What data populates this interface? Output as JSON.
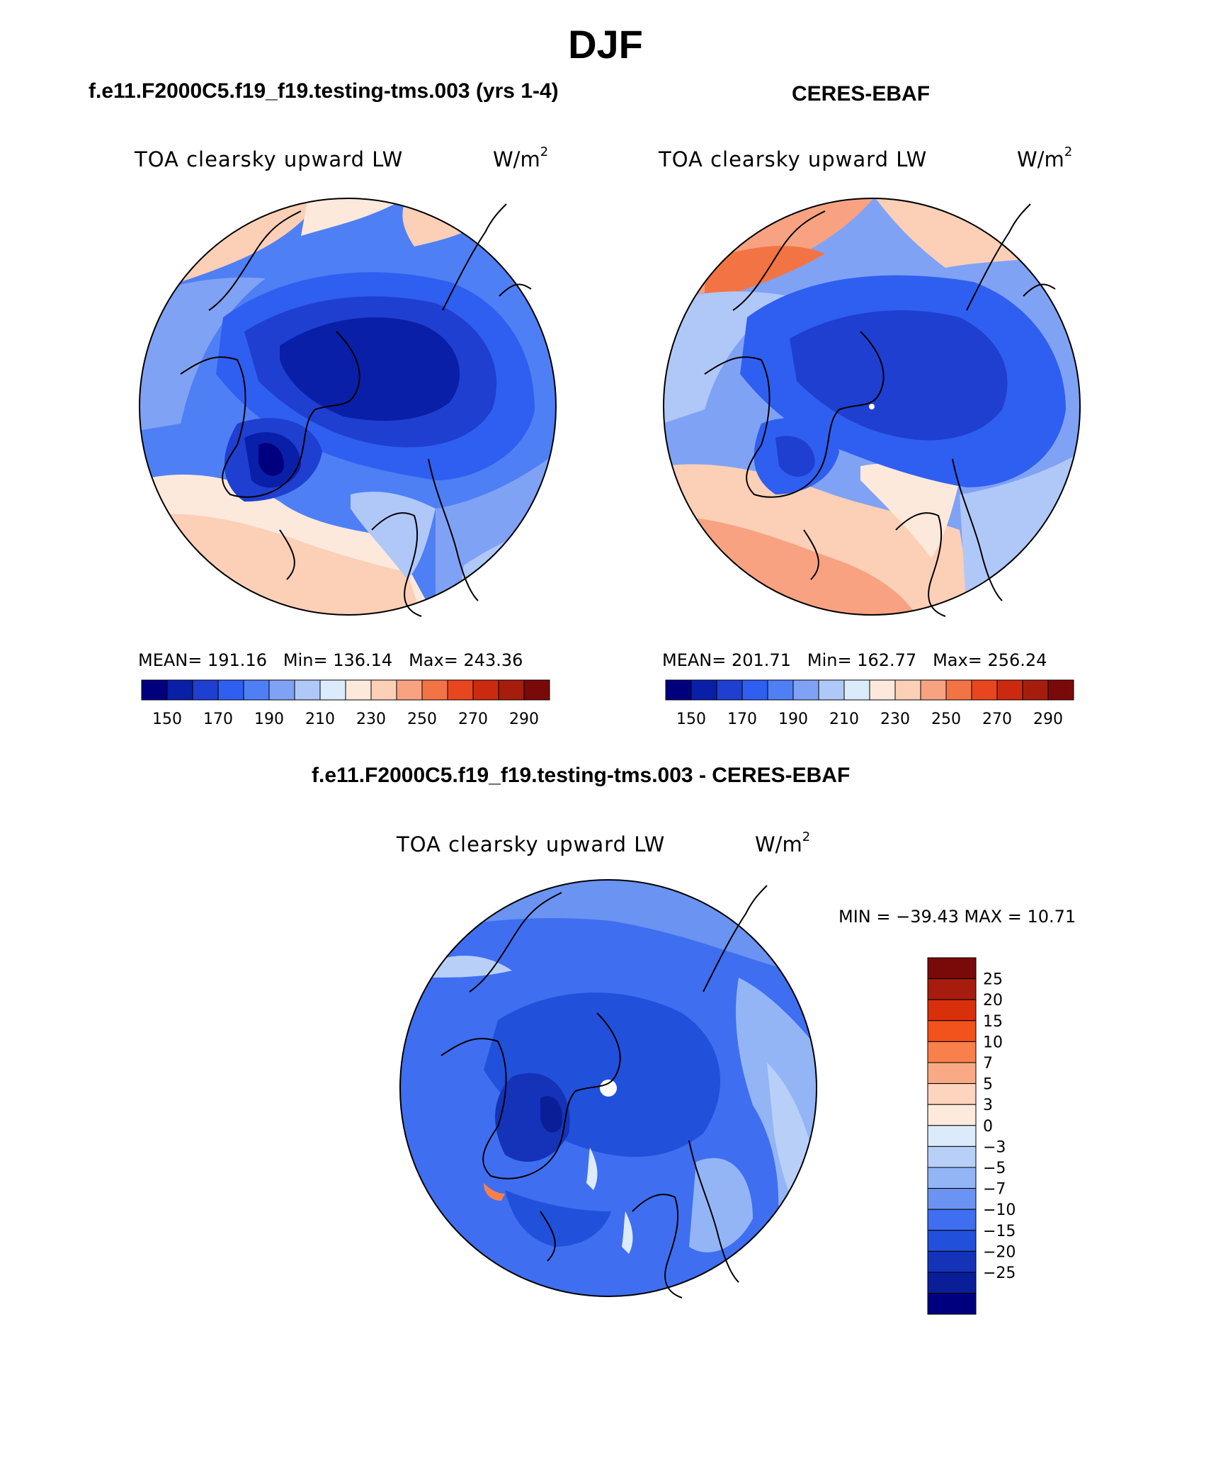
{
  "main_title": "DJF",
  "panels": [
    {
      "title": "f.e11.F2000C5.f19_f19.testing-tms.003 (yrs 1-4)",
      "variable": "TOA clearsky upward LW",
      "units_base": "W/m",
      "units_exp": "2",
      "mean_label": "MEAN=",
      "mean_value": "191.16",
      "min_label": "Min=",
      "min_value": "136.14",
      "max_label": "Max=",
      "max_value": "243.36"
    },
    {
      "title": "CERES-EBAF",
      "variable": "TOA clearsky upward LW",
      "units_base": "W/m",
      "units_exp": "2",
      "mean_label": "MEAN=",
      "mean_value": "201.71",
      "min_label": "Min=",
      "min_value": "162.77",
      "max_label": "Max=",
      "max_value": "256.24"
    }
  ],
  "diff_panel": {
    "title": "f.e11.F2000C5.f19_f19.testing-tms.003 - CERES-EBAF",
    "variable": "TOA clearsky upward LW",
    "units_base": "W/m",
    "units_exp": "2",
    "minmax_text": "MIN = −39.43 MAX =   10.71"
  },
  "abs_colorbar": {
    "colors": [
      "#00007f",
      "#0a1fa8",
      "#1f3fd0",
      "#2f5ff0",
      "#4f7ff5",
      "#80a2f5",
      "#b0c8f8",
      "#dcebfb",
      "#fde9dc",
      "#fccfb7",
      "#f8a282",
      "#f27444",
      "#e8461f",
      "#cc2a0e",
      "#a61d0d",
      "#7a0a0a"
    ],
    "labels": [
      "150",
      "170",
      "190",
      "210",
      "230",
      "250",
      "270",
      "290"
    ]
  },
  "diff_colorbar": {
    "colors": [
      "#7a0a0a",
      "#a61d0d",
      "#d8300a",
      "#f2521c",
      "#f8804a",
      "#f9aa84",
      "#fdd4bd",
      "#fdeadc",
      "#dcebfb",
      "#b8d0f8",
      "#93b5f6",
      "#6a93f2",
      "#3f6ff0",
      "#2150db",
      "#1433b8",
      "#0a1e98",
      "#00007f"
    ],
    "labels": [
      "25",
      "20",
      "15",
      "10",
      "7",
      "5",
      "3",
      "0",
      "−3",
      "−5",
      "−7",
      "−10",
      "−15",
      "−20",
      "−25"
    ]
  },
  "colors": {
    "land_outline": "#000000"
  }
}
